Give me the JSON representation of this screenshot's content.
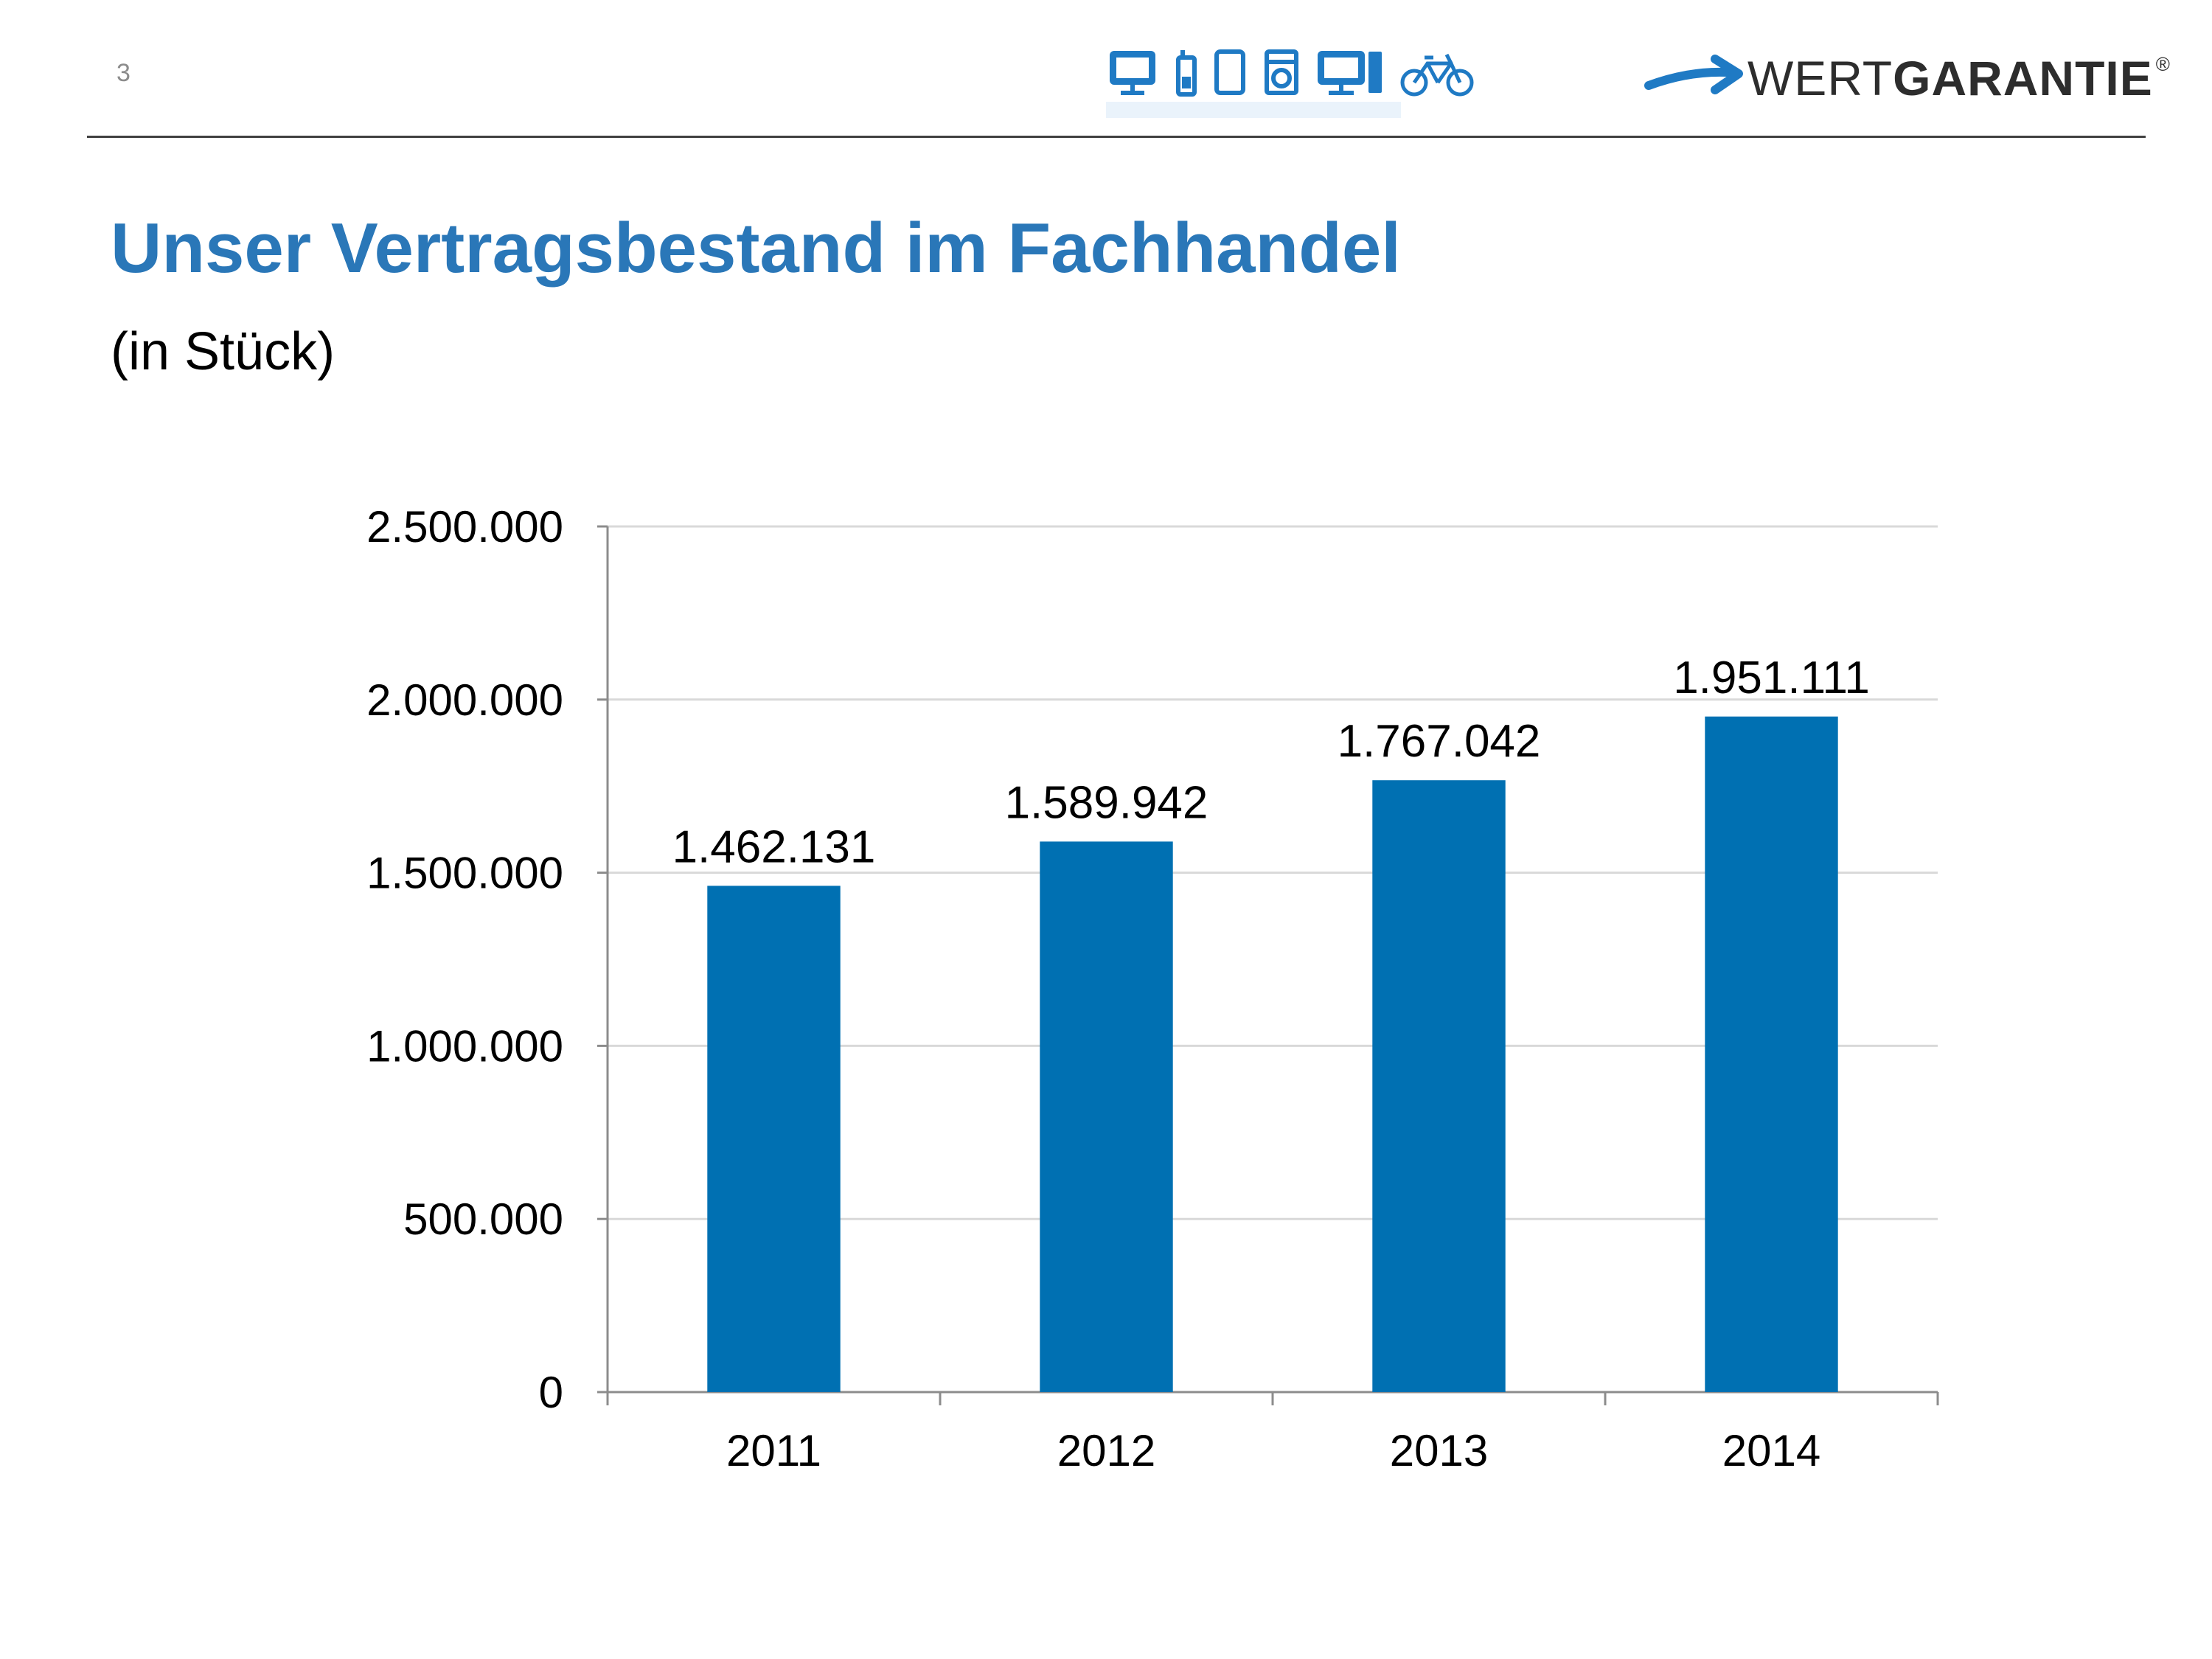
{
  "page": {
    "number": "3"
  },
  "header": {
    "logo": {
      "text_light": "WERT",
      "text_bold": "GARANTIE",
      "registered": "®",
      "accent_color": "#1f7ac4"
    },
    "device_icons": [
      "monitor-icon",
      "mobile-phone-icon",
      "tablet-icon",
      "washing-machine-icon",
      "computer-icon",
      "bicycle-icon"
    ],
    "icon_color": "#1f7ac4"
  },
  "slide": {
    "title": "Unser Vertragsbestand im Fachhandel",
    "subtitle": "(in Stück)"
  },
  "chart_data": {
    "type": "bar",
    "categories": [
      "2011",
      "2012",
      "2013",
      "2014"
    ],
    "values": [
      1462131,
      1589942,
      1767042,
      1951111
    ],
    "value_labels": [
      "1.462.131",
      "1.589.942",
      "1.767.042",
      "1.951.111"
    ],
    "y_ticks": [
      0,
      500000,
      1000000,
      1500000,
      2000000,
      2500000
    ],
    "y_tick_labels": [
      "0",
      "500.000",
      "1.000.000",
      "1.500.000",
      "2.000.000",
      "2.500.000"
    ],
    "ylim": [
      0,
      2500000
    ],
    "title": "",
    "xlabel": "",
    "ylabel": "",
    "grid": true,
    "legend": "none",
    "bar_color": "#0070b2",
    "grid_color": "#d9d9d9",
    "axis_color": "#8c8c8c"
  }
}
